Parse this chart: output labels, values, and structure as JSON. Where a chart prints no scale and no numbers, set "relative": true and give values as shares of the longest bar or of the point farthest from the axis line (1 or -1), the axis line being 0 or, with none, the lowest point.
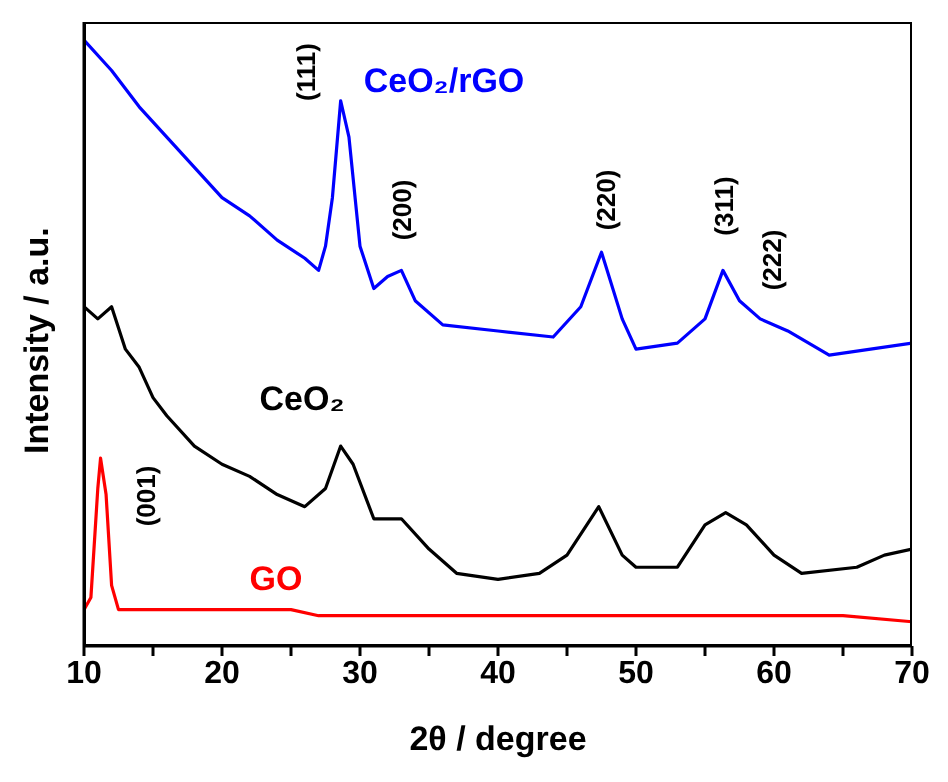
{
  "chart_data": {
    "type": "line",
    "relative": true,
    "xlabel": "2θ / degree",
    "ylabel": "Intensity / a.u.",
    "xlim": [
      10,
      70
    ],
    "xticks": [
      10,
      {
        "value": 15,
        "label": null
      },
      20,
      {
        "value": 25,
        "label": null
      },
      30,
      {
        "value": 35,
        "label": null
      },
      40,
      {
        "value": 45,
        "label": null
      },
      50,
      {
        "value": 55,
        "label": null
      },
      60,
      {
        "value": 65,
        "label": null
      },
      70
    ],
    "marker": "none",
    "line_style": "solid",
    "series": [
      {
        "name": "CeO₂/rGO",
        "color": "#0000ff",
        "x": [
          10,
          12,
          14,
          16,
          18,
          20,
          22,
          24,
          26,
          27,
          27.5,
          28,
          28.6,
          29.2,
          30,
          31,
          32,
          33,
          34,
          36,
          40,
          44,
          46,
          47.5,
          49,
          50,
          53,
          55,
          56.3,
          57.5,
          59,
          61,
          64,
          67,
          70
        ],
        "values": [
          1.0,
          0.95,
          0.89,
          0.84,
          0.79,
          0.74,
          0.71,
          0.67,
          0.64,
          0.62,
          0.66,
          0.74,
          0.9,
          0.84,
          0.66,
          0.59,
          0.61,
          0.62,
          0.57,
          0.53,
          0.52,
          0.51,
          0.56,
          0.65,
          0.54,
          0.49,
          0.5,
          0.54,
          0.62,
          0.57,
          0.54,
          0.52,
          0.48,
          0.49,
          0.5
        ]
      },
      {
        "name": "CeO₂",
        "color": "#000000",
        "x": [
          10,
          11,
          12,
          13,
          14,
          15,
          16,
          18,
          20,
          22,
          24,
          26,
          27.5,
          28.6,
          29.5,
          31,
          33,
          35,
          37,
          40,
          43,
          45,
          47.3,
          49,
          50,
          53,
          55,
          56.5,
          58,
          60,
          62,
          66,
          68,
          70
        ],
        "values": [
          0.56,
          0.54,
          0.56,
          0.49,
          0.46,
          0.41,
          0.38,
          0.33,
          0.3,
          0.28,
          0.25,
          0.23,
          0.26,
          0.33,
          0.3,
          0.21,
          0.21,
          0.16,
          0.12,
          0.11,
          0.12,
          0.15,
          0.23,
          0.15,
          0.13,
          0.13,
          0.2,
          0.22,
          0.2,
          0.15,
          0.12,
          0.13,
          0.15,
          0.16
        ]
      },
      {
        "name": "GO",
        "color": "#ff0000",
        "x": [
          10,
          10.5,
          11,
          11.2,
          11.6,
          12,
          12.5,
          15,
          20,
          22,
          25,
          27,
          30,
          35,
          40,
          45,
          50,
          55,
          60,
          65,
          70
        ],
        "values": [
          0.06,
          0.08,
          0.26,
          0.31,
          0.25,
          0.1,
          0.06,
          0.06,
          0.06,
          0.06,
          0.06,
          0.05,
          0.05,
          0.05,
          0.05,
          0.05,
          0.05,
          0.05,
          0.05,
          0.05,
          0.04
        ]
      }
    ],
    "annotations": [
      "(111)",
      "(200)",
      "(220)",
      "(311)",
      "(222)",
      "(001)"
    ]
  }
}
